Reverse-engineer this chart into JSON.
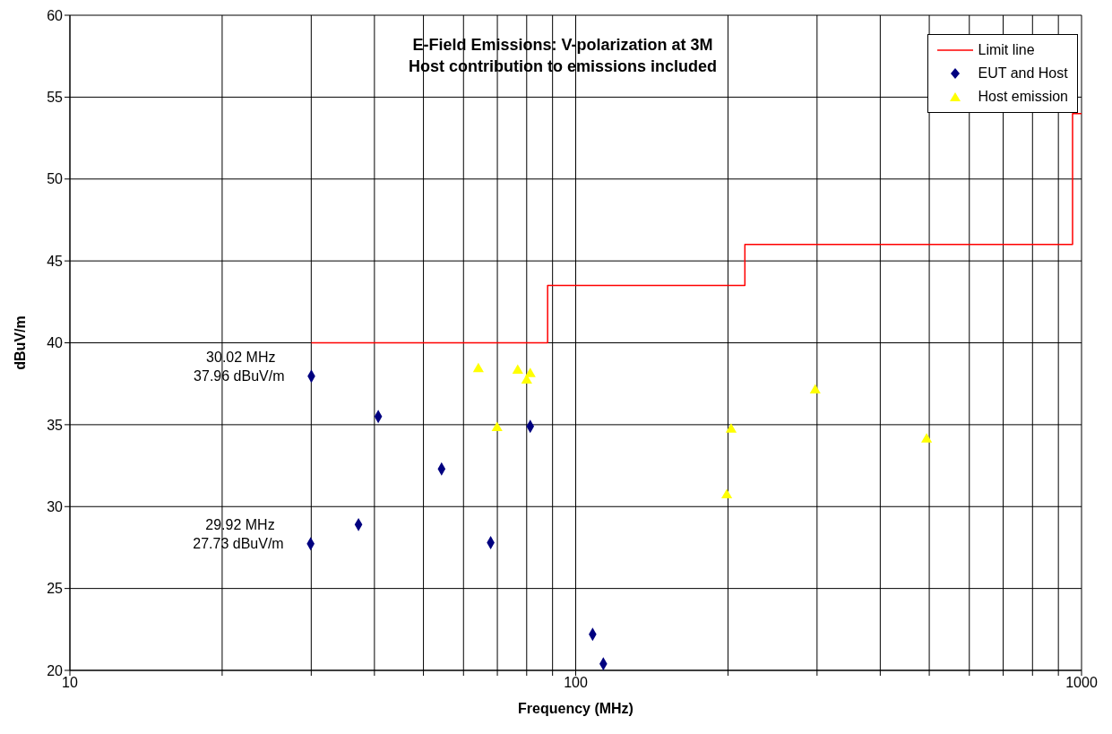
{
  "chart_data": {
    "type": "scatter",
    "title": "E-Field Emissions: V-polarization at 3M\nHost contribution to emissions included",
    "xlabel": "Frequency (MHz)",
    "ylabel": "dBuV/m",
    "log": "x",
    "grid": true,
    "legend": "top right",
    "xlim": [
      10,
      1000
    ],
    "xticks": [
      10,
      {
        "value": 20,
        "label": null
      },
      {
        "value": 30,
        "label": null
      },
      {
        "value": 40,
        "label": null
      },
      {
        "value": 50,
        "label": null
      },
      {
        "value": 60,
        "label": null
      },
      {
        "value": 70,
        "label": null
      },
      {
        "value": 80,
        "label": null
      },
      {
        "value": 90,
        "label": null
      },
      100,
      {
        "value": 200,
        "label": null
      },
      {
        "value": 300,
        "label": null
      },
      {
        "value": 400,
        "label": null
      },
      {
        "value": 500,
        "label": null
      },
      {
        "value": 600,
        "label": null
      },
      {
        "value": 700,
        "label": null
      },
      {
        "value": 800,
        "label": null
      },
      {
        "value": 900,
        "label": null
      },
      1000
    ],
    "ylim": [
      20,
      60
    ],
    "yticks": [
      20,
      25,
      30,
      35,
      40,
      45,
      50,
      55,
      60
    ],
    "series": [
      {
        "name": "Limit line",
        "type": "step",
        "color": "#ff0000",
        "marker": "none",
        "x": [
          30,
          88,
          216,
          960,
          1000
        ],
        "values": [
          40,
          43.5,
          46,
          54,
          54
        ]
      },
      {
        "name": "EUT and Host",
        "color": "#000080",
        "marker": "diamond",
        "x": [
          30.02,
          29.92,
          37.2,
          40.7,
          54.3,
          67.9,
          81.3,
          108,
          113.4
        ],
        "values": [
          37.96,
          27.73,
          28.9,
          35.5,
          32.3,
          27.8,
          34.9,
          22.2,
          20.4
        ]
      },
      {
        "name": "Host emission",
        "color": "#ffff00",
        "marker": "triangle",
        "x": [
          64.2,
          69.9,
          76.8,
          80,
          81.3,
          198.9,
          202.9,
          297.5,
          494
        ],
        "values": [
          38.4,
          34.8,
          38.3,
          37.7,
          38.1,
          30.7,
          34.7,
          37.1,
          34.1
        ]
      }
    ],
    "annotations": [
      {
        "text": "30.02 MHz\n37.96 dBuV/m",
        "x": 30.02,
        "y": 37.96
      },
      {
        "text": "29.92 MHz\n27.73 dBuV/m",
        "x": 29.92,
        "y": 27.73
      }
    ]
  }
}
